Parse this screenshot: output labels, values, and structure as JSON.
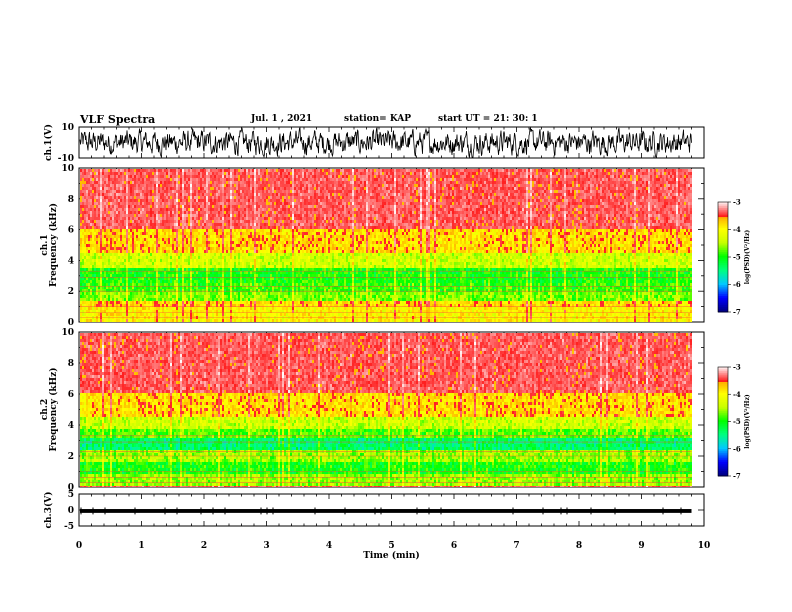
{
  "header": {
    "title": "VLF Spectra",
    "date": "Jul.  1 , 2021",
    "station": "station= KAP",
    "start": "start  UT =   21: 30: 1"
  },
  "colors": {
    "spectrum_stops": [
      "#000080",
      "#0000ff",
      "#00c8ff",
      "#00ff80",
      "#00ff00",
      "#c8ff00",
      "#ffff00",
      "#ffa000",
      "#ff0000",
      "#ffffff"
    ]
  },
  "chart_data": [
    {
      "type": "line",
      "name": "ch1-waveform",
      "ylabel": "ch.1(V)",
      "ylim": [
        -10,
        10
      ],
      "yticks": [
        "10",
        "-10"
      ],
      "description_of_values": "noisy signal mostly between -7 and 7 V",
      "x_range_min": [
        0,
        10
      ]
    },
    {
      "type": "heatmap",
      "name": "ch1-spectrogram",
      "ylabel": "ch.1\nFrequency  (kHz)",
      "ylim": [
        0,
        10
      ],
      "yticks": [
        "0",
        "2",
        "4",
        "6",
        "8",
        "10"
      ],
      "x_range_min": [
        0,
        10
      ],
      "data_extent_min": 9.8,
      "log_psd_bands": [
        {
          "f_khz": [
            0,
            0.9
          ],
          "level": -4.0
        },
        {
          "f_khz": [
            0.9,
            1.3
          ],
          "level": -3.8
        },
        {
          "f_khz": [
            1.3,
            2.0
          ],
          "level": -4.7
        },
        {
          "f_khz": [
            2.0,
            2.6
          ],
          "level": -4.9
        },
        {
          "f_khz": [
            2.6,
            3.5
          ],
          "level": -5.0
        },
        {
          "f_khz": [
            3.5,
            4.5
          ],
          "level": -4.4
        },
        {
          "f_khz": [
            4.5,
            6.0
          ],
          "level": -3.8
        },
        {
          "f_khz": [
            6.0,
            10.0
          ],
          "level": -3.3
        }
      ],
      "colorbar": {
        "label": "log(PSD)(V²/Hz)",
        "range": [
          -7,
          -3
        ],
        "ticks": [
          "-3",
          "-4",
          "-5",
          "-6",
          "-7"
        ]
      }
    },
    {
      "type": "heatmap",
      "name": "ch2-spectrogram",
      "ylabel": "ch.2\nFrequency  (kHz)",
      "ylim": [
        0,
        10
      ],
      "yticks": [
        "0",
        "2",
        "4",
        "6",
        "8",
        "10"
      ],
      "x_range_min": [
        0,
        10
      ],
      "data_extent_min": 9.8,
      "log_psd_bands": [
        {
          "f_khz": [
            0,
            0.9
          ],
          "level": -4.6
        },
        {
          "f_khz": [
            0.9,
            1.6
          ],
          "level": -5.0
        },
        {
          "f_khz": [
            1.6,
            2.3
          ],
          "level": -4.6
        },
        {
          "f_khz": [
            2.3,
            3.2
          ],
          "level": -5.4
        },
        {
          "f_khz": [
            3.2,
            3.8
          ],
          "level": -4.8
        },
        {
          "f_khz": [
            3.8,
            4.6
          ],
          "level": -4.4
        },
        {
          "f_khz": [
            4.6,
            6.0
          ],
          "level": -3.8
        },
        {
          "f_khz": [
            6.0,
            10.0
          ],
          "level": -3.3
        }
      ],
      "colorbar": {
        "label": "log(PSD)(V²/Hz)",
        "range": [
          -7,
          -3
        ],
        "ticks": [
          "-3",
          "-4",
          "-5",
          "-6",
          "-7"
        ]
      }
    },
    {
      "type": "line",
      "name": "ch3-waveform",
      "ylabel": "ch.3(V)",
      "ylim": [
        -5,
        5
      ],
      "yticks": [
        "5",
        "0",
        "-5"
      ],
      "level_v": [
        -0.9,
        0.3
      ],
      "x_range_min": [
        0,
        10
      ]
    }
  ],
  "xaxis": {
    "label": "Time  (min)",
    "ticks": [
      "0",
      "1",
      "2",
      "3",
      "4",
      "5",
      "6",
      "7",
      "8",
      "9",
      "10"
    ]
  }
}
